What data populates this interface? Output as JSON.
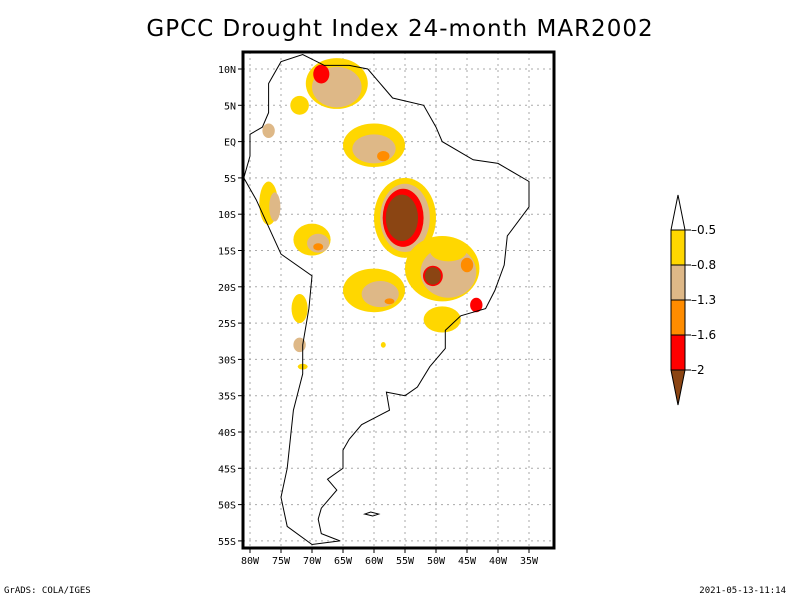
{
  "title": "GPCC Drought Index 24-month MAR2002",
  "footer": {
    "left": "GrADS: COLA/IGES",
    "right": "2021-05-13-11:14"
  },
  "map": {
    "lon_range": [
      -81,
      -31
    ],
    "lat_range": [
      12.5,
      -55.8
    ],
    "x_ticks": [
      "80W",
      "75W",
      "70W",
      "65W",
      "60W",
      "55W",
      "50W",
      "45W",
      "40W",
      "35W"
    ],
    "x_tick_values": [
      -80,
      -75,
      -70,
      -65,
      -60,
      -55,
      -50,
      -45,
      -40,
      -35
    ],
    "y_ticks": [
      "10N",
      "5N",
      "EQ",
      "5S",
      "10S",
      "15S",
      "20S",
      "25S",
      "30S",
      "35S",
      "40S",
      "45S",
      "50S",
      "55S"
    ],
    "y_tick_values": [
      10,
      5,
      0,
      -5,
      -10,
      -15,
      -20,
      -25,
      -30,
      -35,
      -40,
      -45,
      -50,
      -55
    ],
    "grid": "dotted"
  },
  "legend": {
    "levels": [
      "-0.5",
      "-0.8",
      "-1.3",
      "-1.6",
      "-2"
    ],
    "colors": [
      "#ffd700",
      "#deb887",
      "#ff8c00",
      "#ff0000",
      "#8b4513"
    ],
    "top_color": "#ffffff"
  },
  "features": [
    {
      "name": "brown-core-mato-grosso",
      "class": 4,
      "lon": -55.5,
      "lat": -10.5,
      "rx": 2.6,
      "ry": 3.2
    },
    {
      "name": "brown-core-goias",
      "class": 4,
      "lon": -50.5,
      "lat": -18.5,
      "rx": 1.5,
      "ry": 1.3
    },
    {
      "name": "red-venezuela",
      "class": 3,
      "lon": -68.5,
      "lat": 9.5,
      "rx": 1.2,
      "ry": 1.3
    }
  ]
}
